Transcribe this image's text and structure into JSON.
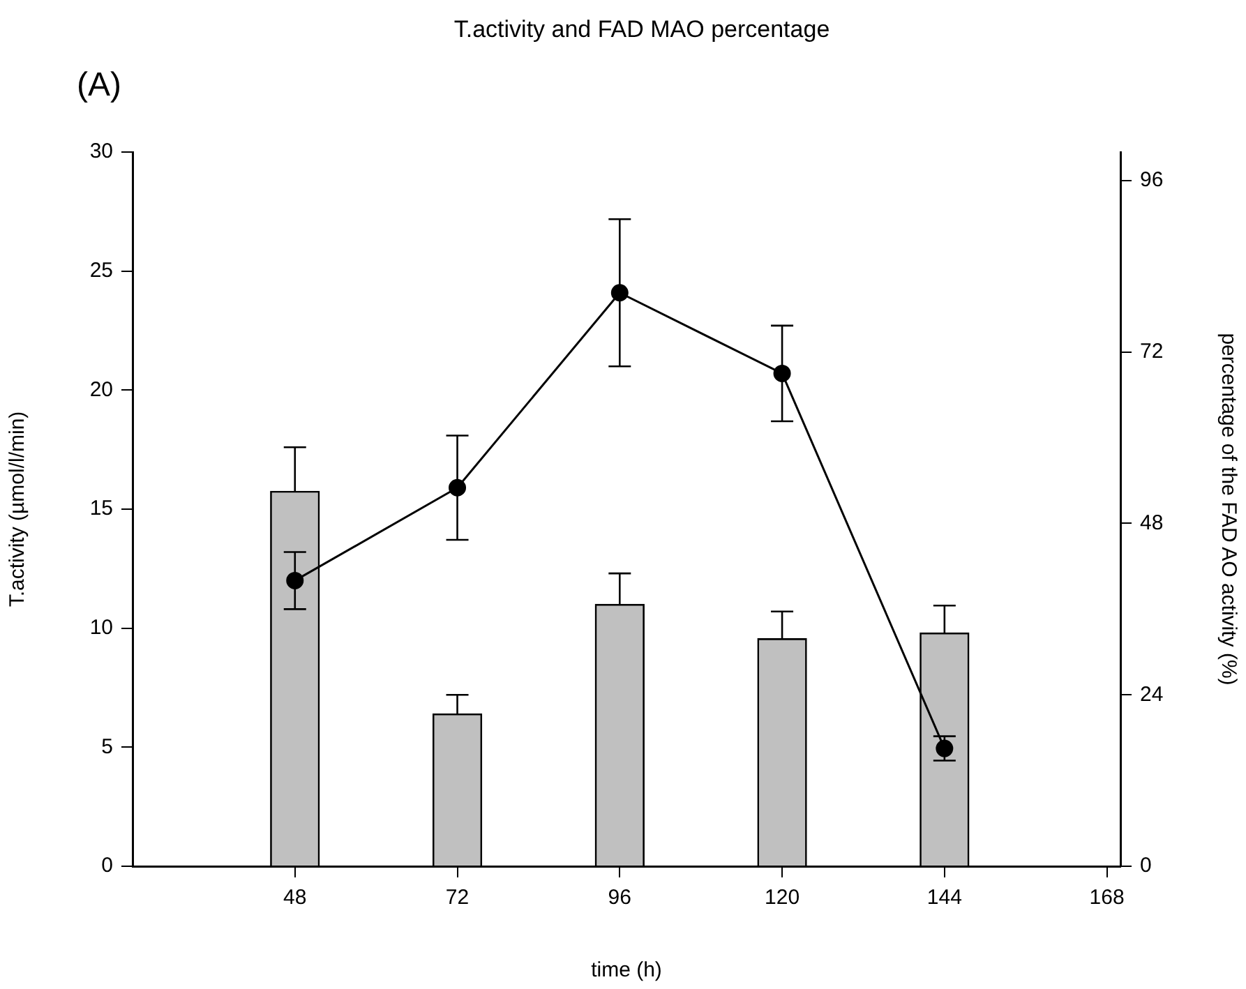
{
  "chart_data": {
    "type": "bar",
    "title": "T.activity and FAD MAO percentage",
    "xlabel": "time (h)",
    "ylabel": "T.activity (µmol/l/min)",
    "y2label": "percentage of the FAD AO activity (%)",
    "annotations": [
      "(A)"
    ],
    "x": [
      48,
      72,
      96,
      120,
      144
    ],
    "xlim": [
      24,
      170
    ],
    "xticks": [
      48,
      72,
      96,
      120,
      144,
      168
    ],
    "ylim": [
      0,
      30
    ],
    "yticks": [
      0,
      5,
      10,
      15,
      20,
      25,
      30
    ],
    "y2lim": [
      0,
      100
    ],
    "y2ticks": [
      0,
      24,
      48,
      72,
      96
    ],
    "series": [
      {
        "axis": "y",
        "color": "#c0c0c0",
        "values": [
          15.75,
          6.4,
          11.0,
          9.56,
          9.8
        ],
        "errors": [
          [
            15.75,
            17.6
          ],
          [
            6.4,
            7.2
          ],
          [
            11.0,
            12.3
          ],
          [
            9.56,
            10.7
          ],
          [
            9.8,
            10.95
          ]
        ]
      },
      {
        "type": "line",
        "axis": "y2",
        "color": "#000000",
        "values": [
          40.0,
          53.0,
          80.3,
          69.0,
          16.5
        ],
        "errors": [
          4.0,
          7.3,
          10.3,
          6.7,
          1.7
        ]
      }
    ],
    "marker": "circle",
    "line_style": "solid",
    "grid": false,
    "legend": false
  }
}
